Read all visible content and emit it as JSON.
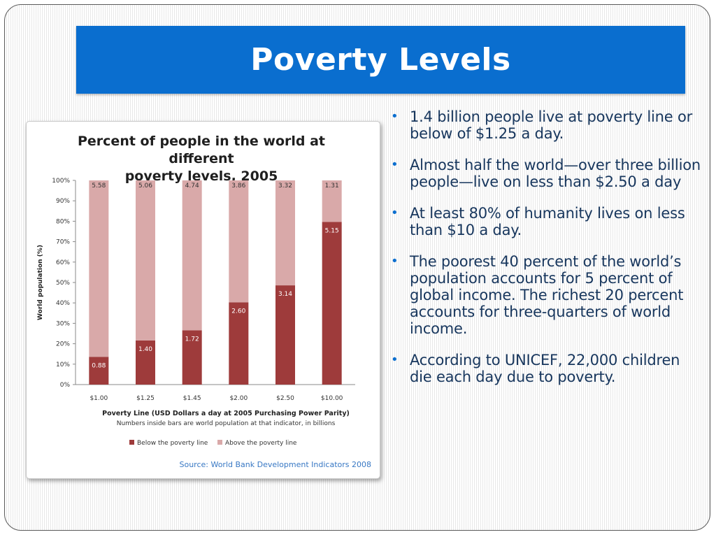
{
  "slide": {
    "title": "Poverty Levels",
    "bullets": [
      "1.4 billion people live at poverty line or below of $1.25 a day.",
      "Almost half the world—over three billion people—live on less than $2.50 a day",
      "At least 80% of humanity lives on less than $10 a day.",
      "The poorest 40 percent of the world’s population accounts for 5 percent of global income. The richest 20 percent accounts for three-quarters of world income.",
      "According to UNICEF, 22,000 children die each day due to poverty."
    ]
  },
  "chart_data": {
    "type": "bar",
    "stacked": true,
    "title_line1": "Percent of people in the world at different",
    "title_line2": "poverty levels, 2005",
    "categories": [
      "$1.00",
      "$1.25",
      "$1.45",
      "$2.00",
      "$2.50",
      "$10.00"
    ],
    "series": [
      {
        "name": "Below the poverty line",
        "color": "#9e3b3b",
        "percent": [
          13.6,
          21.6,
          26.6,
          40.3,
          48.6,
          79.7
        ],
        "labels": [
          "0.88",
          "1.40",
          "1.72",
          "2.60",
          "3.14",
          "5.15"
        ]
      },
      {
        "name": "Above the poverty line",
        "color": "#d9a9a9",
        "percent": [
          86.4,
          78.4,
          73.4,
          59.7,
          51.4,
          20.3
        ],
        "labels": [
          "5.58",
          "5.06",
          "4.74",
          "3.86",
          "3.32",
          "1.31"
        ]
      }
    ],
    "yticks": [
      "0%",
      "10%",
      "20%",
      "30%",
      "40%",
      "50%",
      "60%",
      "70%",
      "80%",
      "90%",
      "100%"
    ],
    "ylim": [
      0,
      100
    ],
    "ylabel": "World population (%)",
    "xlabel": "Poverty Line (USD Dollars a day at 2005 Purchasing Power Parity)",
    "note": "Numbers inside bars are world population at that indicator, in billions",
    "source": "Source: World Bank Development Indicators 2008"
  }
}
